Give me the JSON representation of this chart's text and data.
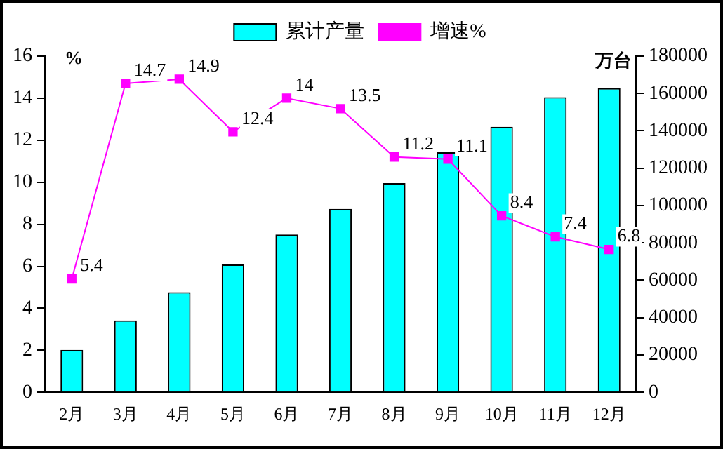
{
  "chart_data": {
    "type": "bar",
    "ylabel": "%",
    "y2label": "万台",
    "categories": [
      "2月",
      "3月",
      "4月",
      "5月",
      "6月",
      "7月",
      "8月",
      "9月",
      "10月",
      "11月",
      "12月"
    ],
    "series": [
      {
        "name": "累计产量",
        "axis": "y2",
        "color": "#00ffff",
        "values": [
          22700,
          38500,
          53600,
          68400,
          84500,
          98200,
          112000,
          128500,
          142200,
          158000,
          162800
        ]
      },
      {
        "name": "增速%",
        "type": "line",
        "axis": "y",
        "color": "#ff00ff",
        "marker": "square",
        "values": [
          5.4,
          14.7,
          14.9,
          12.4,
          14,
          13.5,
          11.2,
          11.1,
          8.4,
          7.4,
          6.8
        ],
        "value_labels": [
          "5.4",
          "14.7",
          "14.9",
          "12.4",
          "14",
          "13.5",
          "11.2",
          "11.1",
          "8.4",
          "7.4",
          "6.8"
        ]
      }
    ],
    "ylim": [
      0,
      16
    ],
    "yticks": [
      0,
      2,
      4,
      6,
      8,
      10,
      12,
      14,
      16
    ],
    "y2lim": [
      0,
      180000
    ],
    "y2ticks": [
      0,
      20000,
      40000,
      60000,
      80000,
      100000,
      120000,
      140000,
      160000,
      180000
    ],
    "grid": false,
    "legend": "top"
  }
}
